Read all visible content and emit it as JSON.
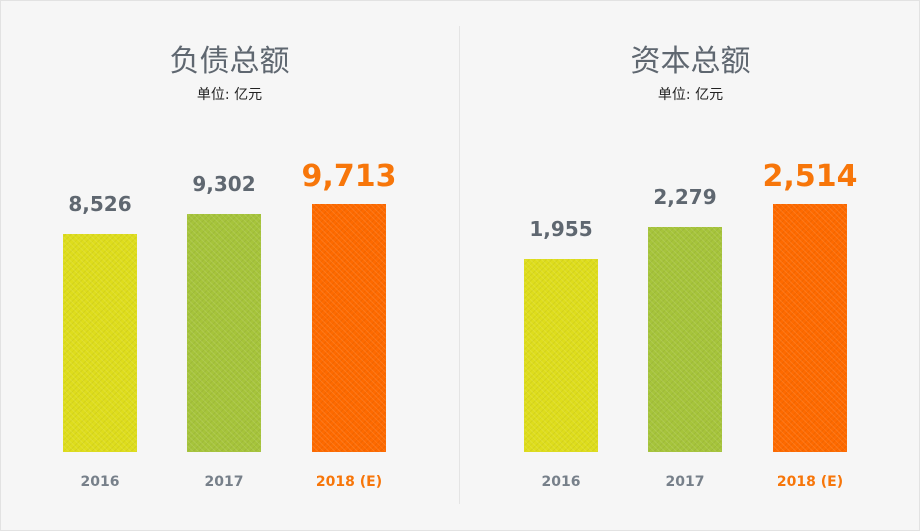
{
  "chart_data": [
    {
      "type": "bar",
      "title": "负债总额",
      "subtitle": "单位: 亿元",
      "categories": [
        "2016",
        "2017",
        "2018 (E)"
      ],
      "values": [
        8526,
        9302,
        9713
      ],
      "value_labels": [
        "8,526",
        "9,302",
        "9,713"
      ],
      "colors": [
        "#dedd1c",
        "#a6c43b",
        "#fe6a00"
      ],
      "highlight_index": 2
    },
    {
      "type": "bar",
      "title": "资本总额",
      "subtitle": "单位: 亿元",
      "categories": [
        "2016",
        "2017",
        "2018 (E)"
      ],
      "values": [
        1955,
        2279,
        2514
      ],
      "value_labels": [
        "1,955",
        "2,279",
        "2,514"
      ],
      "colors": [
        "#dedd1c",
        "#a6c43b",
        "#fe6a00"
      ],
      "highlight_index": 2
    }
  ]
}
